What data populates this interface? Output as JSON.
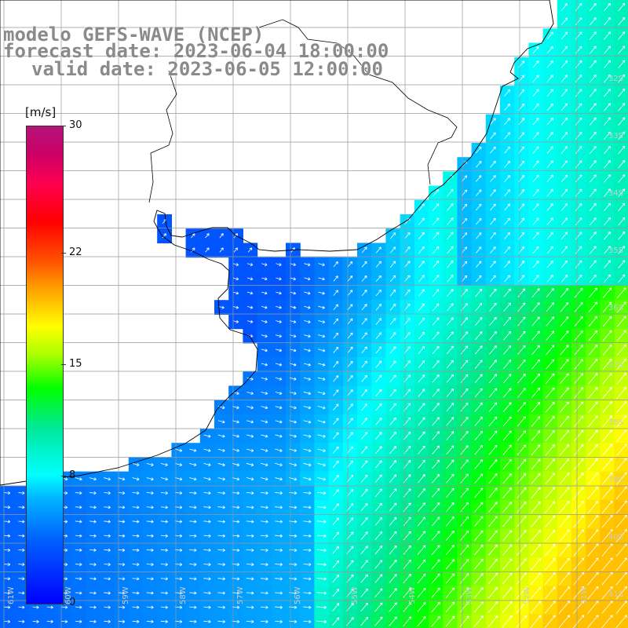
{
  "header": {
    "model": "modelo GEFS-WAVE (NCEP)",
    "forecast": "forecast date: 2023-06-04 18:00:00",
    "valid": "valid date: 2023-06-05 12:00:00"
  },
  "colorbar": {
    "unit": "[m/s]",
    "ticks": [
      "30",
      "22",
      "15",
      "8",
      "0"
    ],
    "tick_values": [
      30,
      22,
      15,
      8,
      0
    ],
    "min": 0,
    "max": 30
  },
  "map": {
    "lat_labels": [
      "32S",
      "33S",
      "34S",
      "35S",
      "36S",
      "37S",
      "38S",
      "39S",
      "40S",
      "41S"
    ],
    "lon_labels": [
      "61W",
      "60W",
      "59W",
      "58W",
      "57W",
      "56W",
      "55W",
      "54W",
      "53W",
      "52W",
      "51W"
    ],
    "colors": {
      "land": "#ffffff",
      "grid": "#999999",
      "coast": "#000000",
      "arrow": "#ffffff"
    }
  }
}
